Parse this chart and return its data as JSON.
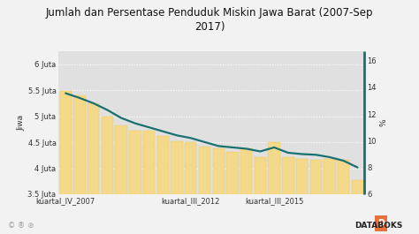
{
  "title": "Jumlah dan Persentase Penduduk Miskin Jawa Barat (2007-Sep\n2017)",
  "ylabel_left": "Jiwa",
  "ylabel_right": "%",
  "bar_color": "#F5D98A",
  "bar_edge_color": "#E8C84A",
  "line_color": "#1A7070",
  "background_color": "#f2f2f2",
  "plot_bg_color": "#e0e0e0",
  "grid_color": "#ffffff",
  "bar_values_juta": [
    5.49,
    5.4,
    5.25,
    5.0,
    4.82,
    4.72,
    4.72,
    4.62,
    4.52,
    4.5,
    4.42,
    4.38,
    4.32,
    4.38,
    4.22,
    4.5,
    4.22,
    4.18,
    4.17,
    4.18,
    4.17,
    3.77
  ],
  "line_values_pct": [
    13.55,
    13.2,
    12.8,
    12.3,
    11.7,
    11.3,
    11.0,
    10.7,
    10.4,
    10.2,
    9.9,
    9.6,
    9.5,
    9.4,
    9.2,
    9.5,
    9.1,
    9.0,
    8.95,
    8.77,
    8.5,
    8.0
  ],
  "xlabels_positions": [
    0,
    9,
    15
  ],
  "xlabels": [
    "kuartal_IV_2007",
    "kuartal_III_2012",
    "kuartal_III_2015"
  ],
  "ylim_left": [
    3500000,
    6250000
  ],
  "ylim_right": [
    6,
    16.67
  ],
  "yticks_left": [
    3500000,
    4000000,
    4500000,
    5000000,
    5500000,
    6000000
  ],
  "ytick_labels_left": [
    "3.5 Juta",
    "4 Juta",
    "4.5 Juta",
    "5 Juta",
    "5.5 Juta",
    "6 Juta"
  ],
  "yticks_right": [
    6,
    8,
    10,
    12,
    14,
    16
  ],
  "title_fontsize": 8.5,
  "axis_fontsize": 6.5,
  "tick_fontsize": 6,
  "databoks_color": "#E8703A",
  "footer_color": "#999999",
  "text_color": "#333333"
}
